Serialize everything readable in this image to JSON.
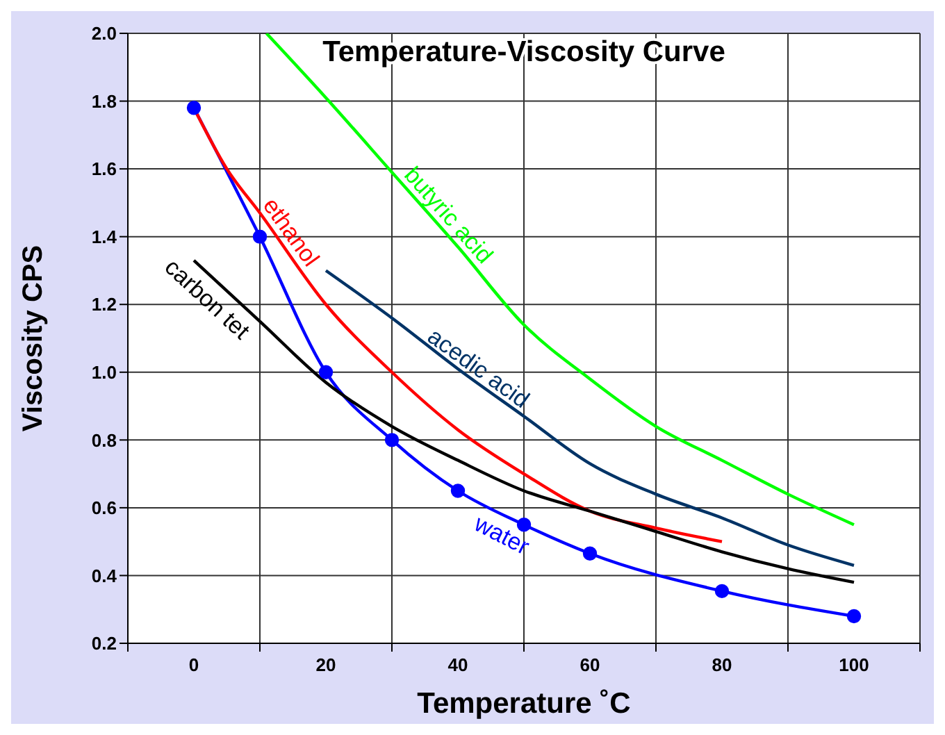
{
  "chart_data": {
    "type": "line",
    "title": "Temperature-Viscosity Curve",
    "xlabel": "Temperature ˚C",
    "ylabel": "Viscosity CPS",
    "xlim": [
      -10,
      110
    ],
    "ylim": [
      0.2,
      2.0
    ],
    "xticks": [
      {
        "value": -10,
        "label": null
      },
      0,
      {
        "value": 10,
        "label": null
      },
      20,
      {
        "value": 30,
        "label": null
      },
      40,
      {
        "value": 50,
        "label": null
      },
      60,
      {
        "value": 70,
        "label": null
      },
      80,
      {
        "value": 90,
        "label": null
      },
      100,
      {
        "value": 110,
        "label": null
      }
    ],
    "yticks": [
      0.2,
      0.4,
      0.6,
      0.8,
      {
        "value": 1,
        "label": "1.0"
      },
      1.2,
      1.4,
      1.6,
      1.8,
      {
        "value": 2,
        "label": "2.0"
      }
    ],
    "grid": true,
    "legend": false,
    "line_style": "solid",
    "series": [
      {
        "name": "water",
        "color": "#0000ff",
        "marker": "circle",
        "x": [
          0,
          10,
          20,
          30,
          40,
          50,
          60,
          80,
          100
        ],
        "values": [
          1.78,
          1.4,
          1.0,
          0.8,
          0.65,
          0.55,
          0.465,
          0.354,
          0.28
        ]
      },
      {
        "name": "ethanol",
        "color": "#ff0000",
        "marker": "none",
        "x": [
          0,
          5,
          10,
          20,
          30,
          40,
          50,
          60,
          70,
          80
        ],
        "values": [
          1.78,
          1.6,
          1.47,
          1.2,
          1.0,
          0.83,
          0.7,
          0.59,
          0.54,
          0.5
        ]
      },
      {
        "name": "carbon tet",
        "color": "#000000",
        "marker": "none",
        "x": [
          0,
          10,
          20,
          30,
          40,
          50,
          60,
          70,
          80,
          90,
          100
        ],
        "values": [
          1.33,
          1.15,
          0.97,
          0.84,
          0.74,
          0.65,
          0.59,
          0.53,
          0.47,
          0.42,
          0.38
        ]
      },
      {
        "name": "acedic acid",
        "color": "#003366",
        "marker": "none",
        "x": [
          20,
          30,
          40,
          50,
          60,
          70,
          80,
          90,
          100
        ],
        "values": [
          1.3,
          1.16,
          1.01,
          0.87,
          0.73,
          0.64,
          0.57,
          0.49,
          0.43
        ]
      },
      {
        "name": "butyric acid",
        "color": "#00ff00",
        "marker": "none",
        "x": [
          11,
          20,
          30,
          40,
          50,
          60,
          70,
          80,
          90,
          100
        ],
        "values": [
          2.0,
          1.81,
          1.59,
          1.37,
          1.14,
          0.98,
          0.84,
          0.74,
          0.64,
          0.55
        ]
      }
    ]
  }
}
